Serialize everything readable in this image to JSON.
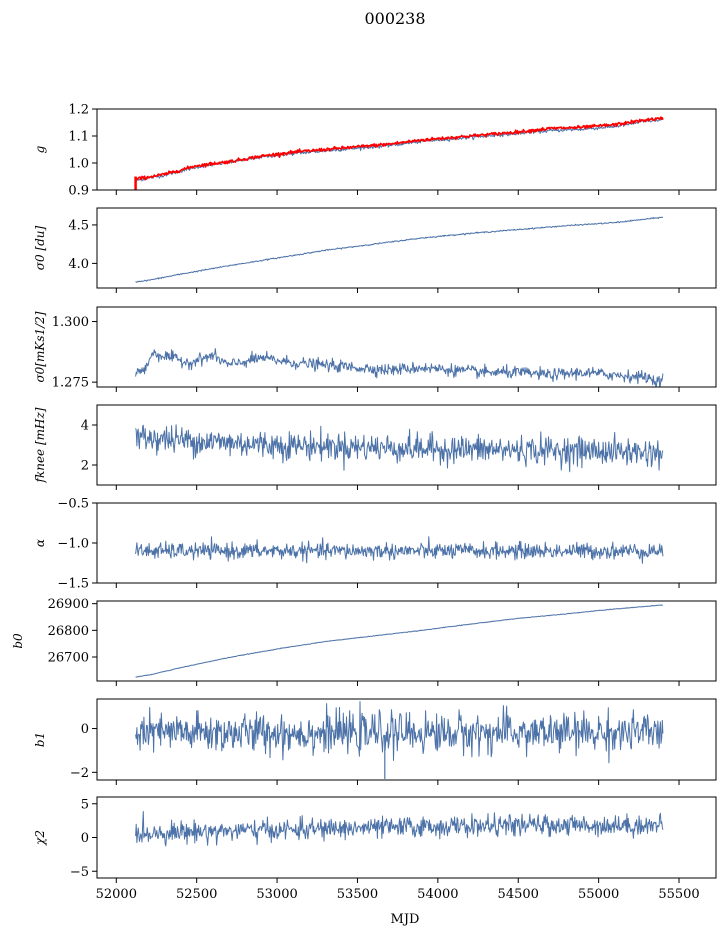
{
  "figure": {
    "title": "000238",
    "xlabel": "MJD",
    "series_color": "#4c72a8",
    "overlay_color": "#ff0000"
  },
  "chart_data": [
    {
      "type": "line",
      "ylabel": "g",
      "ylim": [
        0.9,
        1.2
      ],
      "yticks": [
        0.9,
        1.0,
        1.1,
        1.2
      ],
      "ytick_labels": [
        "0.9",
        "1.0",
        "1.1",
        "1.2"
      ],
      "xlim": [
        51880,
        55730
      ],
      "x_range": [
        52120,
        55400
      ],
      "series": [
        {
          "x": [
            52120,
            52300,
            52500,
            52700,
            52900,
            53100,
            53300,
            53500,
            53700,
            53900,
            54100,
            54300,
            54500,
            54700,
            54900,
            55100,
            55300,
            55400
          ],
          "y": [
            0.935,
            0.955,
            0.985,
            1.002,
            1.022,
            1.035,
            1.045,
            1.055,
            1.065,
            1.08,
            1.09,
            1.1,
            1.11,
            1.12,
            1.125,
            1.135,
            1.155,
            1.16
          ],
          "noise": 0.003
        },
        {
          "x": [
            52120,
            52300,
            52500,
            52700,
            52900,
            53100,
            53300,
            53500,
            53700,
            53900,
            54100,
            54300,
            54500,
            54700,
            54900,
            55100,
            55300,
            55400
          ],
          "y": [
            0.94,
            0.958,
            0.99,
            1.005,
            1.025,
            1.04,
            1.05,
            1.06,
            1.07,
            1.085,
            1.095,
            1.105,
            1.115,
            1.128,
            1.132,
            1.142,
            1.16,
            1.165
          ],
          "noise": 0.003,
          "spike": {
            "x": 52120,
            "y0": 0.9,
            "y1": 0.95
          }
        }
      ]
    },
    {
      "type": "line",
      "ylabel": "σ0 [du]",
      "ylim": [
        3.68,
        4.72
      ],
      "yticks": [
        4.0,
        4.5
      ],
      "ytick_labels": [
        "4.0",
        "4.5"
      ],
      "xlim": [
        51880,
        55730
      ],
      "x_range": [
        52120,
        55400
      ],
      "series": [
        {
          "x": [
            52120,
            52200,
            52400,
            52700,
            53000,
            53300,
            53600,
            53900,
            54200,
            54500,
            54800,
            55100,
            55400
          ],
          "y": [
            3.76,
            3.78,
            3.86,
            3.97,
            4.07,
            4.17,
            4.25,
            4.33,
            4.39,
            4.44,
            4.49,
            4.53,
            4.6
          ],
          "noise": 0.004
        }
      ]
    },
    {
      "type": "line",
      "ylabel": "σ0[mKs1/2]",
      "ylim": [
        1.273,
        1.306
      ],
      "yticks": [
        1.275,
        1.3
      ],
      "ytick_labels": [
        "1.275",
        "1.300"
      ],
      "xlim": [
        51880,
        55730
      ],
      "x_range": [
        52120,
        55400
      ],
      "series": [
        {
          "x": [
            52120,
            52180,
            52220,
            52350,
            52450,
            52600,
            52700,
            52900,
            53100,
            53300,
            53500,
            53700,
            53900,
            54100,
            54300,
            54500,
            54700,
            54900,
            55100,
            55300,
            55380,
            55400
          ],
          "y": [
            1.279,
            1.28,
            1.287,
            1.285,
            1.283,
            1.286,
            1.282,
            1.285,
            1.283,
            1.282,
            1.281,
            1.28,
            1.281,
            1.28,
            1.279,
            1.279,
            1.278,
            1.279,
            1.278,
            1.277,
            1.275,
            1.277
          ],
          "noise": 0.0012
        }
      ]
    },
    {
      "type": "line",
      "ylabel": "fknee [mHz]",
      "ylim": [
        1.0,
        5.0
      ],
      "yticks": [
        2,
        4
      ],
      "ytick_labels": [
        "2",
        "4"
      ],
      "xlim": [
        51880,
        55730
      ],
      "x_range": [
        52120,
        55400
      ],
      "series": [
        {
          "x": [
            52120,
            52500,
            53000,
            53500,
            54000,
            54500,
            55000,
            55400
          ],
          "y": [
            3.4,
            3.2,
            3.0,
            2.9,
            2.8,
            2.75,
            2.7,
            2.6
          ],
          "noise": 0.35
        }
      ]
    },
    {
      "type": "line",
      "ylabel": "α",
      "ylim": [
        -1.5,
        -0.5
      ],
      "yticks": [
        -1.5,
        -1.0,
        -0.5
      ],
      "ytick_labels": [
        "−1.5",
        "−1.0",
        "−0.5"
      ],
      "xlim": [
        51880,
        55730
      ],
      "x_range": [
        52120,
        55400
      ],
      "series": [
        {
          "x": [
            52120,
            53000,
            54000,
            55400
          ],
          "y": [
            -1.1,
            -1.1,
            -1.1,
            -1.1
          ],
          "noise": 0.05
        }
      ]
    },
    {
      "type": "line",
      "ylabel": "b0",
      "ylim": [
        26610,
        26910
      ],
      "yticks": [
        26700,
        26800,
        26900
      ],
      "ytick_labels": [
        "26700",
        "26800",
        "26900"
      ],
      "xlim": [
        51880,
        55730
      ],
      "x_range": [
        52120,
        55400
      ],
      "series": [
        {
          "x": [
            52120,
            52200,
            52400,
            52700,
            53000,
            53300,
            53600,
            53900,
            54200,
            54500,
            54800,
            55100,
            55400
          ],
          "y": [
            26625,
            26632,
            26660,
            26698,
            26730,
            26758,
            26779,
            26800,
            26823,
            26845,
            26862,
            26880,
            26895
          ],
          "noise": 0.6
        }
      ]
    },
    {
      "type": "line",
      "ylabel": "b1",
      "ylim": [
        -2.35,
        1.35
      ],
      "yticks": [
        -2,
        0
      ],
      "ytick_labels": [
        "−2",
        "0"
      ],
      "xlim": [
        51880,
        55730
      ],
      "x_range": [
        52120,
        55400
      ],
      "series": [
        {
          "x": [
            52120,
            53000,
            54000,
            55400
          ],
          "y": [
            -0.2,
            -0.2,
            -0.2,
            -0.2
          ],
          "noise": 0.45,
          "spike": {
            "x": 53670,
            "y0": -0.3,
            "y1": -2.3
          }
        }
      ]
    },
    {
      "type": "line",
      "ylabel": "χ2",
      "ylim": [
        -6,
        6
      ],
      "yticks": [
        -5,
        0,
        5
      ],
      "ytick_labels": [
        "−5",
        "0",
        "5"
      ],
      "xlim": [
        51880,
        55730
      ],
      "x_range": [
        52120,
        55400
      ],
      "series": [
        {
          "x": [
            52120,
            52500,
            53000,
            53500,
            54000,
            54500,
            55000,
            55400
          ],
          "y": [
            0.6,
            0.9,
            1.1,
            1.4,
            1.6,
            1.8,
            1.8,
            1.8
          ],
          "noise": 0.75
        }
      ]
    }
  ],
  "xaxis": {
    "ticks": [
      52000,
      52500,
      53000,
      53500,
      54000,
      54500,
      55000,
      55500
    ],
    "tick_labels": [
      "52000",
      "52500",
      "53000",
      "53500",
      "54000",
      "54500",
      "55000",
      "55500"
    ]
  }
}
